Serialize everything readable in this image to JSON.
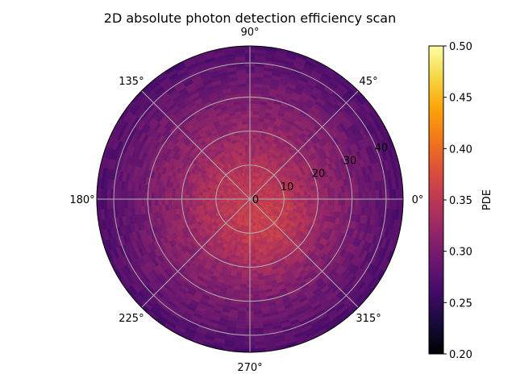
{
  "chart_data": {
    "type": "heatmap",
    "projection": "polar",
    "title": "2D absolute photon detection efficiency scan",
    "angular_ticks": [
      "0°",
      "45°",
      "90°",
      "135°",
      "180°",
      "225°",
      "270°",
      "315°"
    ],
    "angular_tick_values_deg": [
      0,
      45,
      90,
      135,
      180,
      225,
      270,
      315
    ],
    "radial_ticks": [
      "0",
      "10",
      "20",
      "30",
      "40"
    ],
    "radial_tick_values": [
      0,
      10,
      20,
      30,
      40
    ],
    "rlim": [
      0,
      45
    ],
    "grid": true,
    "colormap": "inferno",
    "colorbar": {
      "label": "PDE",
      "vmin": 0.2,
      "vmax": 0.5,
      "ticks": [
        "0.20",
        "0.25",
        "0.30",
        "0.35",
        "0.40",
        "0.45",
        "0.50"
      ],
      "tick_values": [
        0.2,
        0.25,
        0.3,
        0.35,
        0.4,
        0.45,
        0.5
      ]
    },
    "pde_profile": {
      "radius": [
        0,
        5,
        10,
        15,
        20,
        25,
        30,
        35,
        40,
        45
      ],
      "mean_pde": [
        0.34,
        0.345,
        0.34,
        0.33,
        0.32,
        0.31,
        0.3,
        0.29,
        0.28,
        0.27
      ],
      "hotspot_angle_deg": 300,
      "hotspot_radius": 9,
      "hotspot_peak": 0.365,
      "noise": 0.012
    }
  }
}
